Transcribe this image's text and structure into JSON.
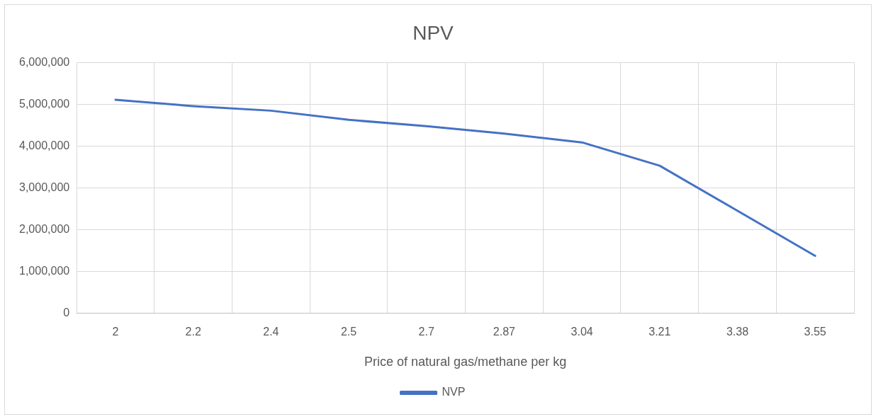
{
  "chart_data": {
    "type": "line",
    "title": "NPV",
    "xlabel": "Price of natural gas/methane per kg",
    "categories": [
      "2",
      "2.2",
      "2.4",
      "2.5",
      "2.7",
      "2.87",
      "3.04",
      "3.21",
      "3.38",
      "3.55"
    ],
    "series": [
      {
        "name": "NVP",
        "color": "#4472c4",
        "values": [
          5110000,
          4960000,
          4850000,
          4630000,
          4480000,
          4300000,
          4090000,
          3530000,
          2450000,
          1370000
        ]
      }
    ],
    "ylim": [
      0,
      6000000
    ],
    "yticks": [
      0,
      {
        "value": 1000000,
        "label": "1,000,000"
      },
      {
        "value": 2000000,
        "label": "2,000,000"
      },
      {
        "value": 3000000,
        "label": "3,000,000"
      },
      {
        "value": 4000000,
        "label": "4,000,000"
      },
      {
        "value": 5000000,
        "label": "5,000,000"
      },
      {
        "value": 6000000,
        "label": "6,000,000"
      }
    ],
    "grid": true,
    "legend": "bottom",
    "marker": "none",
    "line_style": "solid"
  }
}
